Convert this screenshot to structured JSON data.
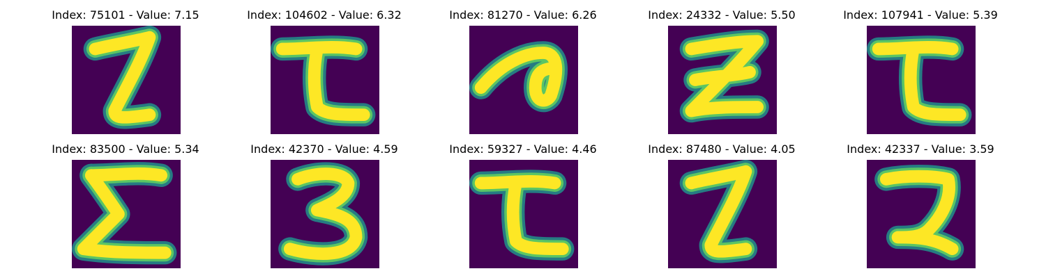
{
  "figure": {
    "panels": [
      {
        "title": "Index: 75101 - Value: 7.15",
        "glyph": "z-with-top-serif",
        "index": 75101,
        "value": 7.15
      },
      {
        "title": "Index: 104602 - Value: 6.32",
        "glyph": "t-hook",
        "index": 104602,
        "value": 6.32
      },
      {
        "title": "Index: 81270 - Value: 6.26",
        "glyph": "loop-stroke",
        "index": 81270,
        "value": 6.26
      },
      {
        "title": "Index: 24332 - Value: 5.50",
        "glyph": "z-crossed",
        "index": 24332,
        "value": 5.5
      },
      {
        "title": "Index: 107941 - Value: 5.39",
        "glyph": "t-hook",
        "index": 107941,
        "value": 5.39
      },
      {
        "title": "Index: 83500 - Value: 5.34",
        "glyph": "sigma",
        "index": 83500,
        "value": 5.34
      },
      {
        "title": "Index: 42370 - Value: 4.59",
        "glyph": "three",
        "index": 42370,
        "value": 4.59
      },
      {
        "title": "Index: 59327 - Value: 4.46",
        "glyph": "t-hook",
        "index": 59327,
        "value": 4.46
      },
      {
        "title": "Index: 87480 - Value: 4.05",
        "glyph": "z-with-top-serif",
        "index": 87480,
        "value": 4.05
      },
      {
        "title": "Index: 42337 - Value: 3.59",
        "glyph": "two-reversed",
        "index": 42337,
        "value": 3.59
      }
    ],
    "colors": {
      "background": "#440154",
      "stroke_core": "#fde725",
      "stroke_edge": "#21918c",
      "stroke_mid": "#5ec962"
    }
  }
}
